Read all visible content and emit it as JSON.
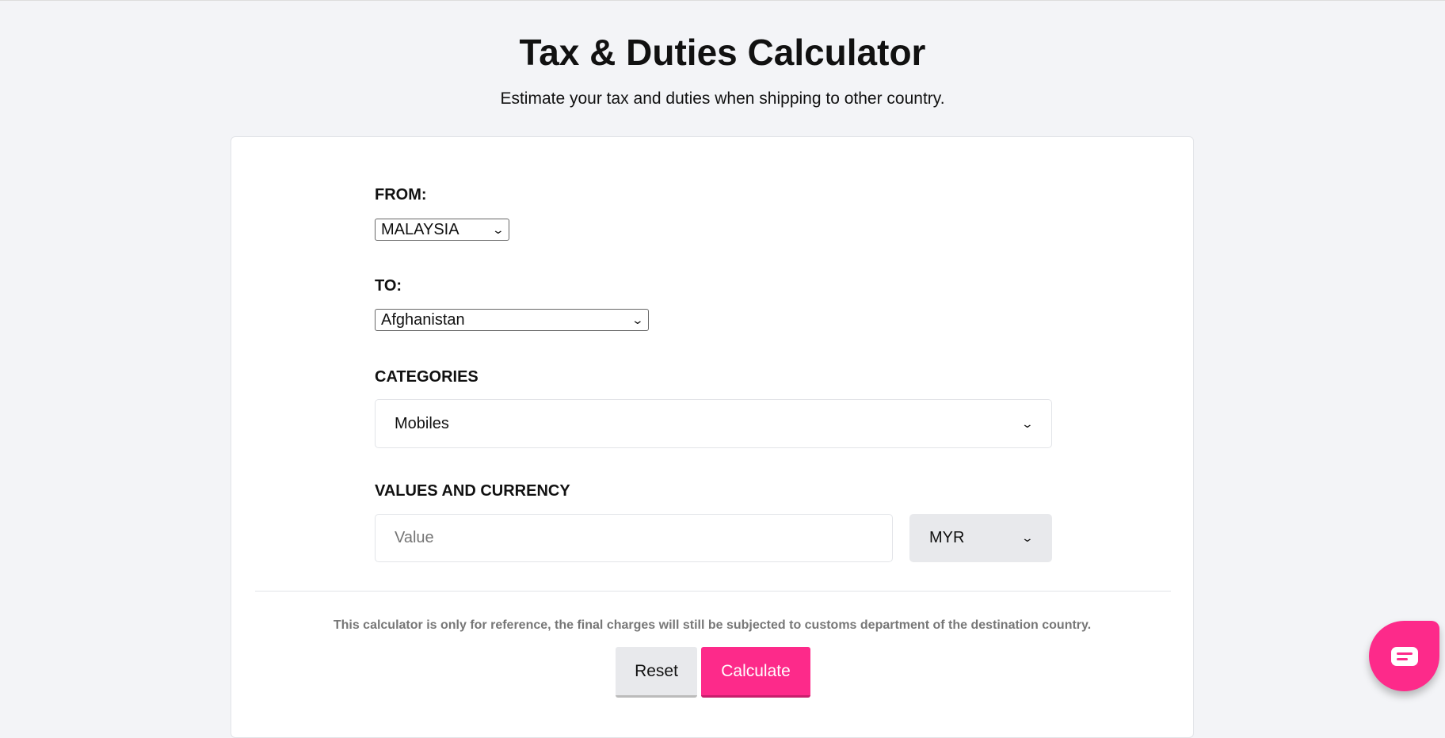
{
  "header": {
    "title": "Tax & Duties Calculator",
    "subtitle": "Estimate your tax and duties when shipping to other country."
  },
  "form": {
    "from": {
      "label": "FROM:",
      "value": "MALAYSIA"
    },
    "to": {
      "label": "TO:",
      "value": "Afghanistan"
    },
    "categories": {
      "label": "CATEGORIES",
      "value": "Mobiles"
    },
    "values": {
      "label": "VALUES AND CURRENCY",
      "placeholder": "Value",
      "currency": "MYR"
    }
  },
  "disclaimer": "This calculator is only for reference, the final charges will still be subjected to customs department of the destination country.",
  "buttons": {
    "reset": "Reset",
    "calculate": "Calculate"
  },
  "colors": {
    "accent": "#fd2a8a",
    "background": "#f3f4f7"
  },
  "chat": {
    "icon": "chat-bubble-icon"
  }
}
